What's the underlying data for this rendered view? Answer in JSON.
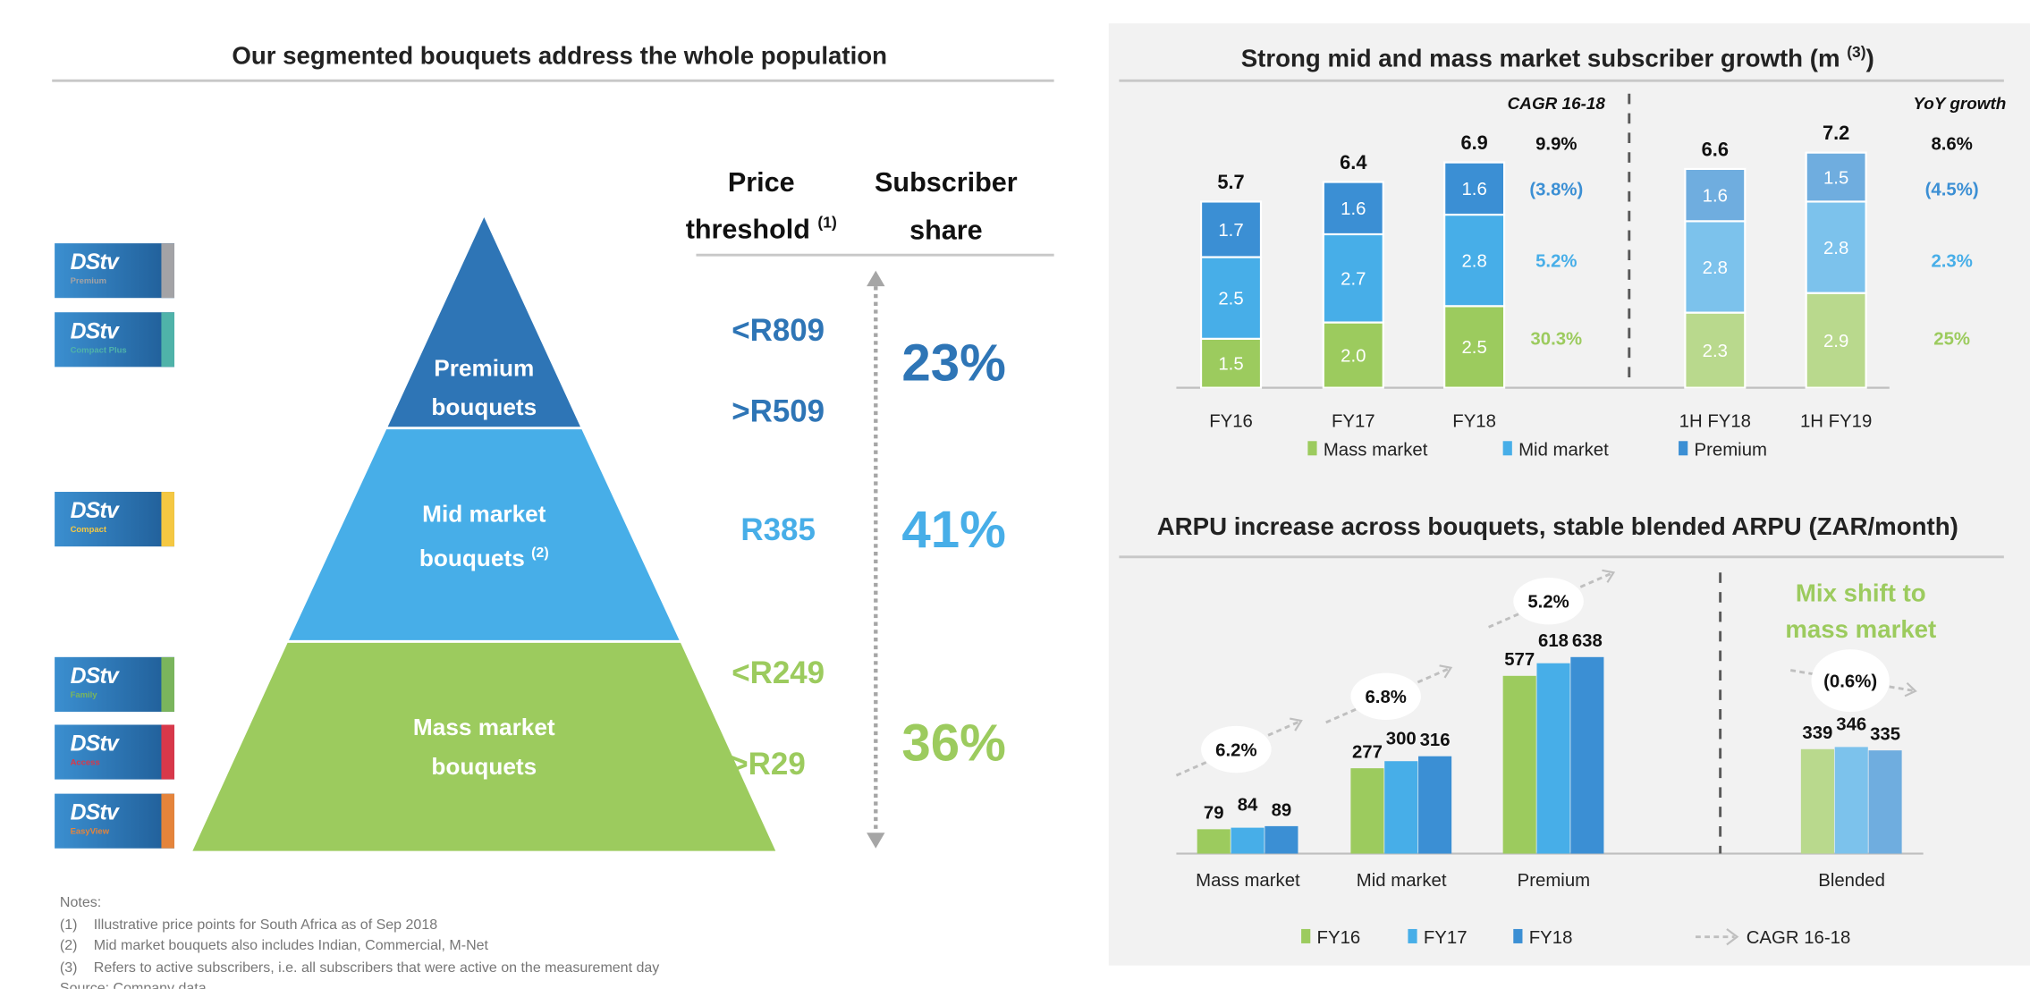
{
  "left": {
    "title": "Our segmented bouquets address the whole population",
    "logos": [
      {
        "brand": "DStv",
        "tier": "Premium",
        "color": "#a3a3a6"
      },
      {
        "brand": "DStv",
        "tier": "Compact Plus",
        "color": "#4fb3a9"
      },
      {
        "brand": "DStv",
        "tier": "Compact",
        "color": "#f5c842"
      },
      {
        "brand": "DStv",
        "tier": "Family",
        "color": "#7ab55c"
      },
      {
        "brand": "DStv",
        "tier": "Access",
        "color": "#d8384a"
      },
      {
        "brand": "DStv",
        "tier": "EasyView",
        "color": "#e5843b"
      }
    ],
    "pyramid": {
      "premium": {
        "line1": "Premium",
        "line2": "bouquets",
        "color": "#2e75b6"
      },
      "mid": {
        "line1": "Mid market",
        "line2": "bouquets",
        "sup": "(2)",
        "color": "#47aee8"
      },
      "mass": {
        "line1": "Mass market",
        "line2": "bouquets",
        "color": "#9ccb5e"
      }
    },
    "headers": {
      "price_line1": "Price",
      "price_line2": "threshold",
      "price_sup": "(1)",
      "share_line1": "Subscriber",
      "share_line2": "share"
    },
    "prices": {
      "premium_high": "<R809",
      "premium_low": ">R509",
      "mid": "R385",
      "mass_high": "<R249",
      "mass_low": ">R29"
    },
    "shares": {
      "premium": "23%",
      "mid": "41%",
      "mass": "36%"
    },
    "notes": {
      "heading": "Notes:",
      "items": [
        {
          "num": "(1)",
          "text": "Illustrative price points for South Africa as of Sep 2018"
        },
        {
          "num": "(2)",
          "text": "Mid market bouquets also includes Indian, Commercial, M-Net"
        },
        {
          "num": "(3)",
          "text": "Refers to active subscribers, i.e. all subscribers that were active on the measurement day"
        }
      ],
      "source": "Source: Company data"
    }
  },
  "chart_data": [
    {
      "type": "bar",
      "stacked": true,
      "title": "Strong mid and mass market subscriber growth (m",
      "title_sup": "(3)",
      "title_end": ")",
      "categories": [
        "FY16",
        "FY17",
        "FY18",
        "1H FY18",
        "1H FY19"
      ],
      "series": [
        {
          "name": "Mass market",
          "values": [
            1.5,
            2.0,
            2.5,
            2.3,
            2.9
          ],
          "color": "#9ccb5e",
          "light_color": "#b9d98d"
        },
        {
          "name": "Mid market",
          "values": [
            2.5,
            2.7,
            2.8,
            2.8,
            2.8
          ],
          "color": "#47aee8",
          "light_color": "#7cc2ec"
        },
        {
          "name": "Premium",
          "values": [
            1.7,
            1.6,
            1.6,
            1.6,
            1.5
          ],
          "color": "#3b8fd4",
          "light_color": "#6faddf"
        }
      ],
      "totals": [
        5.7,
        6.4,
        6.9,
        6.6,
        7.2
      ],
      "growth_columns": [
        {
          "header": "CAGR 16-18",
          "total": "9.9%",
          "Premium": "(3.8%)",
          "Mid market": "5.2%",
          "Mass market": "30.3%"
        },
        {
          "header": "YoY growth",
          "total": "8.6%",
          "Premium": "(4.5%)",
          "Mid market": "2.3%",
          "Mass market": "25%"
        }
      ],
      "units": "m",
      "legend": "bottom"
    },
    {
      "type": "bar",
      "stacked": false,
      "title": "ARPU increase across bouquets, stable blended ARPU (ZAR/month)",
      "categories": [
        "Mass market",
        "Mid market",
        "Premium",
        "Blended"
      ],
      "series": [
        {
          "name": "FY16",
          "values": [
            79,
            277,
            577,
            339
          ],
          "color": "#9ccb5e",
          "light_color": "#b9d98d"
        },
        {
          "name": "FY17",
          "values": [
            84,
            300,
            618,
            346
          ],
          "color": "#47aee8",
          "light_color": "#7cc2ec"
        },
        {
          "name": "FY18",
          "values": [
            89,
            316,
            638,
            335
          ],
          "color": "#3b8fd4",
          "light_color": "#6faddf"
        }
      ],
      "cagr": [
        "6.2%",
        "6.8%",
        "5.2%",
        "(0.6%)"
      ],
      "cagr_legend": "CAGR 16-18",
      "annotation": {
        "line1": "Mix shift to",
        "line2": "mass market",
        "color": "#9ccb5e"
      },
      "legend": "bottom"
    }
  ]
}
